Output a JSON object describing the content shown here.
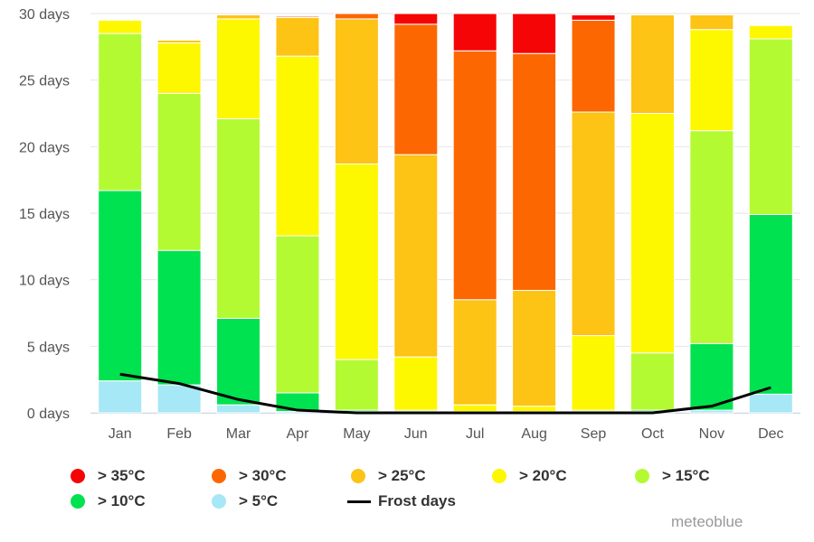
{
  "chart_data": {
    "type": "bar",
    "stacked": true,
    "categories": [
      "Jan",
      "Feb",
      "Mar",
      "Apr",
      "May",
      "Jun",
      "Jul",
      "Aug",
      "Sep",
      "Oct",
      "Nov",
      "Dec"
    ],
    "y_ticks": [
      "0 days",
      "5 days",
      "10 days",
      "15 days",
      "20 days",
      "25 days",
      "30 days"
    ],
    "ylim": [
      0,
      30
    ],
    "grid": true,
    "legend_position": "bottom",
    "series": [
      {
        "name": "> 5°C",
        "color": "#a6e8f5",
        "values": [
          2.4,
          2.1,
          0.6,
          0.1,
          0.1,
          0.1,
          0.1,
          0.1,
          0.1,
          0.1,
          0.2,
          1.4
        ]
      },
      {
        "name": "> 10°C",
        "color": "#00e24f",
        "values": [
          14.3,
          10.1,
          6.5,
          1.4,
          0.1,
          0.0,
          0.0,
          0.0,
          0.0,
          0.1,
          5.0,
          13.5
        ]
      },
      {
        "name": "> 15°C",
        "color": "#b4fa32",
        "values": [
          11.8,
          11.8,
          15.0,
          11.8,
          3.8,
          0.1,
          0.0,
          0.0,
          0.1,
          4.3,
          16.0,
          13.2
        ]
      },
      {
        "name": "> 20°C",
        "color": "#fdf700",
        "values": [
          1.0,
          3.8,
          7.5,
          13.5,
          14.7,
          4.0,
          0.5,
          0.4,
          5.6,
          18.0,
          7.6,
          1.0
        ]
      },
      {
        "name": "> 25°C",
        "color": "#fdc315",
        "values": [
          0.0,
          0.2,
          0.3,
          2.9,
          10.9,
          15.2,
          7.9,
          8.7,
          16.8,
          7.4,
          1.1,
          0.0
        ]
      },
      {
        "name": "> 30°C",
        "color": "#fd6702",
        "values": [
          0.0,
          0.0,
          0.0,
          0.1,
          0.4,
          9.8,
          18.7,
          17.8,
          6.9,
          0.0,
          0.0,
          0.0
        ]
      },
      {
        "name": "> 35°C",
        "color": "#f50505",
        "values": [
          0.0,
          0.0,
          0.0,
          0.0,
          0.0,
          0.8,
          2.8,
          3.1,
          0.4,
          0.0,
          0.0,
          0.0
        ]
      }
    ],
    "frost_days": {
      "name": "Frost days",
      "color": "#000000",
      "values": [
        2.9,
        2.2,
        1.0,
        0.2,
        0.0,
        0.0,
        0.0,
        0.0,
        0.0,
        0.0,
        0.5,
        1.9
      ]
    }
  },
  "legend": {
    "row1": [
      {
        "label": "> 35°C",
        "color": "#f50505"
      },
      {
        "label": "> 30°C",
        "color": "#fd6702"
      },
      {
        "label": "> 25°C",
        "color": "#fdc315"
      },
      {
        "label": "> 20°C",
        "color": "#fdf700"
      },
      {
        "label": "> 15°C",
        "color": "#b4fa32"
      }
    ],
    "row2": [
      {
        "label": "> 10°C",
        "color": "#00e24f"
      },
      {
        "label": "> 5°C",
        "color": "#a6e8f5"
      },
      {
        "label": "Frost days",
        "color": "#000000"
      }
    ]
  },
  "credit": "meteoblue"
}
